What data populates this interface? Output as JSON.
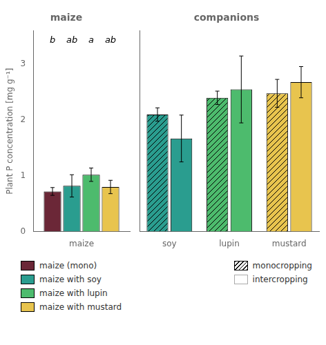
{
  "chart_data": [
    {
      "type": "bar",
      "title": "maize",
      "ylabel": "Plant P concentration [mg g⁻¹]",
      "categories": [
        "maize"
      ],
      "series": [
        {
          "name": "maize (mono)",
          "color": "#6b2737",
          "values": [
            0.72
          ],
          "errors": [
            0.07
          ]
        },
        {
          "name": "maize with soy",
          "color": "#2a9d8f",
          "values": [
            0.82
          ],
          "errors": [
            0.2
          ]
        },
        {
          "name": "maize with lupin",
          "color": "#4dbb6d",
          "values": [
            1.02
          ],
          "errors": [
            0.12
          ]
        },
        {
          "name": "maize with mustard",
          "color": "#e8c44e",
          "values": [
            0.8
          ],
          "errors": [
            0.12
          ]
        }
      ],
      "annotations": [
        "b",
        "ab",
        "a",
        "ab"
      ],
      "ylim": [
        0,
        3.6
      ],
      "yticks": [
        0,
        1,
        2,
        3
      ],
      "grid": false,
      "legend": "bottom"
    },
    {
      "type": "bar",
      "title": "companions",
      "categories": [
        "soy",
        "lupin",
        "mustard"
      ],
      "series": [
        {
          "name": "monocropping",
          "color": "#ffffff",
          "colors": [
            "#2a9d8f",
            "#4dbb6d",
            "#e8c44e"
          ],
          "values": [
            2.1,
            2.4,
            2.48
          ],
          "errors": [
            0.12,
            0.12,
            0.25
          ]
        },
        {
          "name": "intercropping",
          "color": "#ffffff",
          "colors": [
            "#2a9d8f",
            "#4dbb6d",
            "#e8c44e"
          ],
          "values": [
            1.67,
            2.55,
            2.68
          ],
          "errors": [
            0.42,
            0.6,
            0.28
          ]
        }
      ],
      "ylim": [
        0,
        3.6
      ],
      "grid": false,
      "tick_labels": "x",
      "legend": "bottom"
    }
  ]
}
